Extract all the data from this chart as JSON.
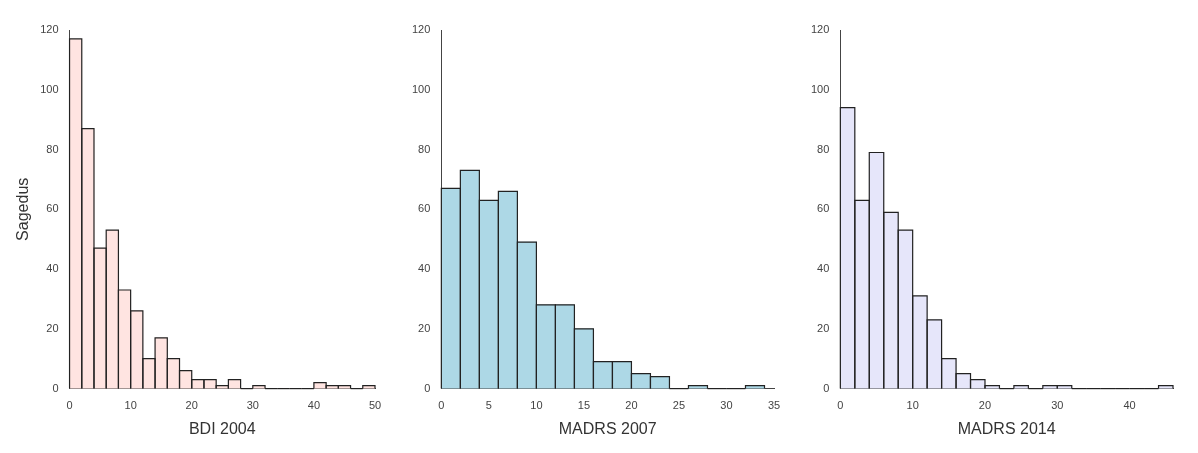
{
  "chart_data": [
    {
      "type": "histogram",
      "xlabel": "BDI 2004",
      "ylabel": "Sagedus",
      "color": "#ffe4e1",
      "bins": [
        0,
        2,
        4,
        6,
        8,
        10,
        12,
        14,
        16,
        18,
        20,
        22,
        24,
        26,
        28,
        30,
        32,
        34,
        36,
        38,
        40,
        42,
        44,
        46,
        48,
        50
      ],
      "values": [
        117,
        87,
        47,
        53,
        33,
        26,
        10,
        17,
        10,
        6,
        3,
        3,
        1,
        3,
        0,
        1,
        0,
        0,
        0,
        0,
        2,
        1,
        1,
        0,
        1
      ],
      "xlim": [
        0,
        50
      ],
      "xticks": [
        0,
        10,
        20,
        30,
        40,
        50
      ],
      "ylim": [
        0,
        120
      ],
      "yticks": [
        0,
        20,
        40,
        60,
        80,
        100,
        120
      ]
    },
    {
      "type": "histogram",
      "xlabel": "MADRS 2007",
      "color": "#add8e6",
      "bins": [
        0,
        2,
        4,
        6,
        8,
        10,
        12,
        14,
        16,
        18,
        20,
        22,
        24,
        26,
        28,
        30,
        32,
        34
      ],
      "values": [
        67,
        73,
        63,
        66,
        49,
        28,
        28,
        20,
        9,
        9,
        5,
        4,
        0,
        1,
        0,
        0,
        1
      ],
      "xlim": [
        0,
        35
      ],
      "xticks": [
        0,
        5,
        10,
        15,
        20,
        25,
        30,
        35
      ],
      "ylim": [
        0,
        120
      ],
      "yticks": [
        0,
        20,
        40,
        60,
        80,
        100,
        120
      ]
    },
    {
      "type": "histogram",
      "xlabel": "MADRS 2014",
      "color": "#e6e6fa",
      "bins": [
        0,
        2,
        4,
        6,
        8,
        10,
        12,
        14,
        16,
        18,
        20,
        22,
        24,
        26,
        28,
        30,
        32,
        34,
        36,
        38,
        40,
        42,
        44,
        46
      ],
      "values": [
        94,
        63,
        79,
        59,
        53,
        31,
        23,
        10,
        5,
        3,
        1,
        0,
        1,
        0,
        1,
        1,
        0,
        0,
        0,
        0,
        0,
        0,
        1
      ],
      "xlim": [
        0,
        46
      ],
      "xticks": [
        0,
        10,
        20,
        30,
        40
      ],
      "ylim": [
        0,
        120
      ],
      "yticks": [
        0,
        20,
        40,
        60,
        80,
        100,
        120
      ]
    }
  ]
}
